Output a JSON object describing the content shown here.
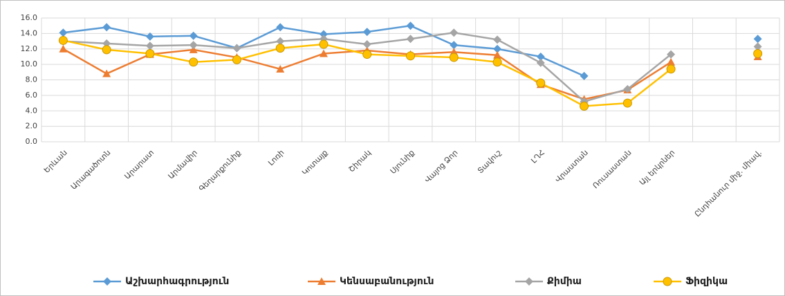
{
  "chart_data": {
    "type": "line",
    "categories": [
      "Երևան",
      "Արագածոտն",
      "Արարատ",
      "Արմավիր",
      "Գեղարքունիք",
      "Լոռի",
      "Կոտայք",
      "Շիրակ",
      "Սյունիք",
      "Վայոց Ձոր",
      "Տավուշ",
      "ԼՂՀ",
      "Վրաստան",
      "Ռուսաստան",
      "Այլ երկրներ",
      null,
      "Ընդհանուր միջ. միավ."
    ],
    "series": [
      {
        "name": "Աշխարհագրություն",
        "color": "#5b9bd5",
        "marker": "diamond",
        "values": [
          14.1,
          14.8,
          13.6,
          13.7,
          12.1,
          14.8,
          13.9,
          14.2,
          15.0,
          12.5,
          12.0,
          11.0,
          8.5,
          null,
          null,
          null,
          13.3
        ]
      },
      {
        "name": "Կենսաբանություն",
        "color": "#ed7d31",
        "marker": "triangle",
        "values": [
          12.0,
          8.8,
          11.3,
          11.9,
          10.9,
          9.4,
          11.4,
          11.8,
          11.3,
          11.6,
          11.2,
          7.4,
          5.5,
          6.7,
          10.3,
          null,
          11.0
        ]
      },
      {
        "name": "Քիմիա",
        "color": "#a5a5a5",
        "marker": "diamond",
        "values": [
          13.0,
          12.7,
          12.4,
          12.5,
          12.1,
          13.0,
          13.3,
          12.6,
          13.3,
          14.1,
          13.2,
          10.2,
          5.2,
          6.8,
          11.3,
          null,
          12.3
        ]
      },
      {
        "name": "Ֆիզիկա",
        "color": "#ffc000",
        "marker": "circle",
        "values": [
          13.1,
          11.9,
          11.4,
          10.3,
          10.6,
          12.1,
          12.6,
          11.3,
          11.1,
          10.9,
          10.3,
          7.6,
          4.6,
          5.0,
          9.4,
          null,
          11.4
        ]
      }
    ],
    "ylim": [
      0,
      16
    ],
    "yticks": [
      {
        "value": 0,
        "label": "0.0"
      },
      {
        "value": 2,
        "label": "2.0"
      },
      {
        "value": 4,
        "label": "4.0"
      },
      {
        "value": 6,
        "label": "6.0"
      },
      {
        "value": 8,
        "label": "8.0"
      },
      {
        "value": 10,
        "label": "10.0"
      },
      {
        "value": 12,
        "label": "12.0"
      },
      {
        "value": 14,
        "label": "14.0"
      },
      {
        "value": 16,
        "label": "16.0"
      }
    ],
    "grid": true,
    "legend": "bottom"
  }
}
